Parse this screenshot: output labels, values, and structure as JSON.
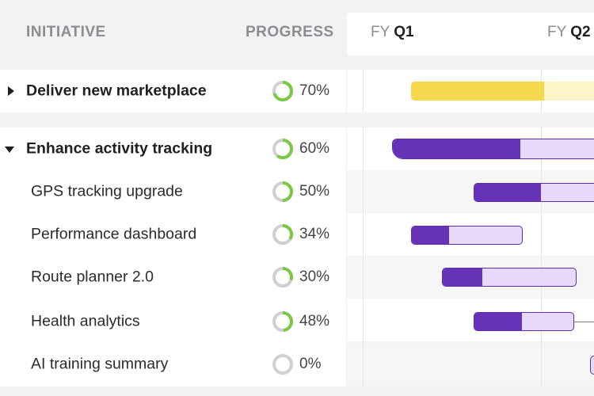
{
  "headers": {
    "initiative": "INITIATIVE",
    "progress": "PROGRESS"
  },
  "timeline": {
    "quarters": [
      {
        "fy": "FY",
        "q": "Q1"
      },
      {
        "fy": "FY",
        "q": "Q2"
      }
    ]
  },
  "rows": [
    {
      "label": "Deliver new marketplace",
      "progress": "70%",
      "progress_value": 0.7,
      "level": "parent",
      "expanded": false,
      "bar_color": "yellow"
    },
    {
      "label": "Enhance activity tracking",
      "progress": "60%",
      "progress_value": 0.6,
      "level": "parent",
      "expanded": true,
      "bar_color": "purple"
    },
    {
      "label": "GPS tracking upgrade",
      "progress": "50%",
      "progress_value": 0.5,
      "level": "child",
      "bar_color": "purple"
    },
    {
      "label": "Performance dashboard",
      "progress": "34%",
      "progress_value": 0.34,
      "level": "child",
      "bar_color": "purple"
    },
    {
      "label": "Route planner 2.0",
      "progress": "30%",
      "progress_value": 0.3,
      "level": "child",
      "bar_color": "purple"
    },
    {
      "label": "Health analytics",
      "progress": "48%",
      "progress_value": 0.48,
      "level": "child",
      "bar_color": "purple"
    },
    {
      "label": "AI training summary",
      "progress": "0%",
      "progress_value": 0.0,
      "level": "child",
      "bar_color": "purple"
    }
  ],
  "colors": {
    "ring_progress": "#7ac943",
    "ring_track": "#cfcfd4",
    "bar_purple": "#6633b8",
    "bar_purple_light": "#e6d9fb",
    "bar_yellow": "#f4d94f",
    "bar_yellow_light": "#fdf4c9"
  }
}
